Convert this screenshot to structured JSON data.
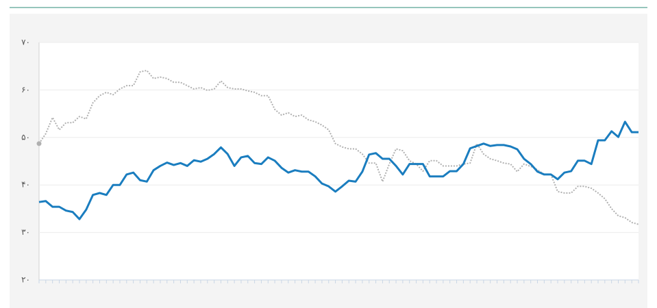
{
  "chart_data": {
    "type": "line",
    "categories": [
      null,
      null,
      null,
      null,
      null,
      null,
      null,
      null,
      null,
      null,
      null,
      null,
      null,
      null,
      null,
      null,
      null,
      null,
      null,
      null,
      null,
      null,
      null,
      null,
      null,
      null,
      null,
      null,
      null,
      null,
      null,
      null,
      null,
      null,
      null,
      null,
      null,
      null,
      null,
      null,
      null,
      null,
      null,
      null,
      null,
      null,
      null,
      null,
      null,
      null,
      null,
      null,
      null,
      null,
      null,
      null,
      null,
      null,
      null,
      null,
      null,
      null,
      null,
      null,
      null,
      null,
      null,
      null,
      null,
      null,
      null,
      null,
      null,
      null,
      null,
      null,
      null,
      null,
      null,
      null,
      null,
      null,
      null,
      null,
      null,
      null,
      null,
      null,
      null,
      null
    ],
    "series": [
      {
        "color": "#b0b0b0",
        "line_style": "dotted",
        "start_marker": true,
        "values": [
          48.7,
          50.8,
          54.2,
          51.6,
          53.1,
          53.1,
          54.4,
          53.9,
          57.3,
          58.8,
          59.5,
          59.0,
          60.2,
          60.9,
          60.9,
          63.8,
          64.1,
          62.4,
          62.7,
          62.4,
          61.6,
          61.6,
          60.9,
          60.2,
          60.5,
          59.9,
          60.2,
          61.9,
          60.5,
          60.2,
          60.2,
          59.8,
          59.5,
          58.8,
          58.8,
          55.9,
          54.7,
          55.2,
          54.4,
          54.7,
          53.7,
          53.3,
          52.6,
          51.6,
          48.7,
          48.0,
          47.6,
          47.6,
          46.5,
          44.6,
          44.6,
          40.7,
          44.4,
          47.6,
          47.2,
          45.1,
          44.4,
          42.9,
          45.1,
          45.1,
          44.0,
          44.0,
          44.0,
          44.4,
          44.6,
          48.7,
          46.5,
          45.5,
          45.1,
          44.6,
          44.4,
          42.8,
          44.4,
          43.9,
          43.2,
          42.2,
          42.2,
          38.6,
          38.3,
          38.3,
          39.7,
          39.7,
          39.3,
          38.3,
          37.1,
          35.0,
          33.5,
          33.1,
          32.1,
          31.7
        ]
      },
      {
        "color": "#1a7dbf",
        "line_style": "solid",
        "start_marker": false,
        "values": [
          36.4,
          36.6,
          35.4,
          35.4,
          34.6,
          34.3,
          32.8,
          34.8,
          37.9,
          38.3,
          37.9,
          40.0,
          40.0,
          42.2,
          42.6,
          41.0,
          40.7,
          43.1,
          44.0,
          44.7,
          44.2,
          44.6,
          44.0,
          45.2,
          44.9,
          45.5,
          46.5,
          47.9,
          46.5,
          44.0,
          45.8,
          46.1,
          44.6,
          44.4,
          45.8,
          45.1,
          43.6,
          42.6,
          43.1,
          42.8,
          42.8,
          41.8,
          40.3,
          39.7,
          38.6,
          39.7,
          40.9,
          40.7,
          42.8,
          46.4,
          46.7,
          45.5,
          45.5,
          44.0,
          42.2,
          44.4,
          44.4,
          44.4,
          41.8,
          41.8,
          41.8,
          42.9,
          42.9,
          44.4,
          47.7,
          48.2,
          48.7,
          48.2,
          48.4,
          48.4,
          48.1,
          47.5,
          45.5,
          44.4,
          42.8,
          42.2,
          42.2,
          41.2,
          42.6,
          42.9,
          45.1,
          45.1,
          44.4,
          49.4,
          49.4,
          51.3,
          50.1,
          53.3,
          51.1,
          51.1
        ]
      }
    ],
    "ylim": [
      20,
      70
    ],
    "yticks": [
      {
        "value": 20,
        "label": "۲۰"
      },
      {
        "value": 30,
        "label": "۳۰"
      },
      {
        "value": 40,
        "label": "۴۰"
      },
      {
        "value": 50,
        "label": "۵۰"
      },
      {
        "value": 60,
        "label": "۶۰"
      },
      {
        "value": 70,
        "label": "۷۰"
      }
    ],
    "grid": true
  }
}
